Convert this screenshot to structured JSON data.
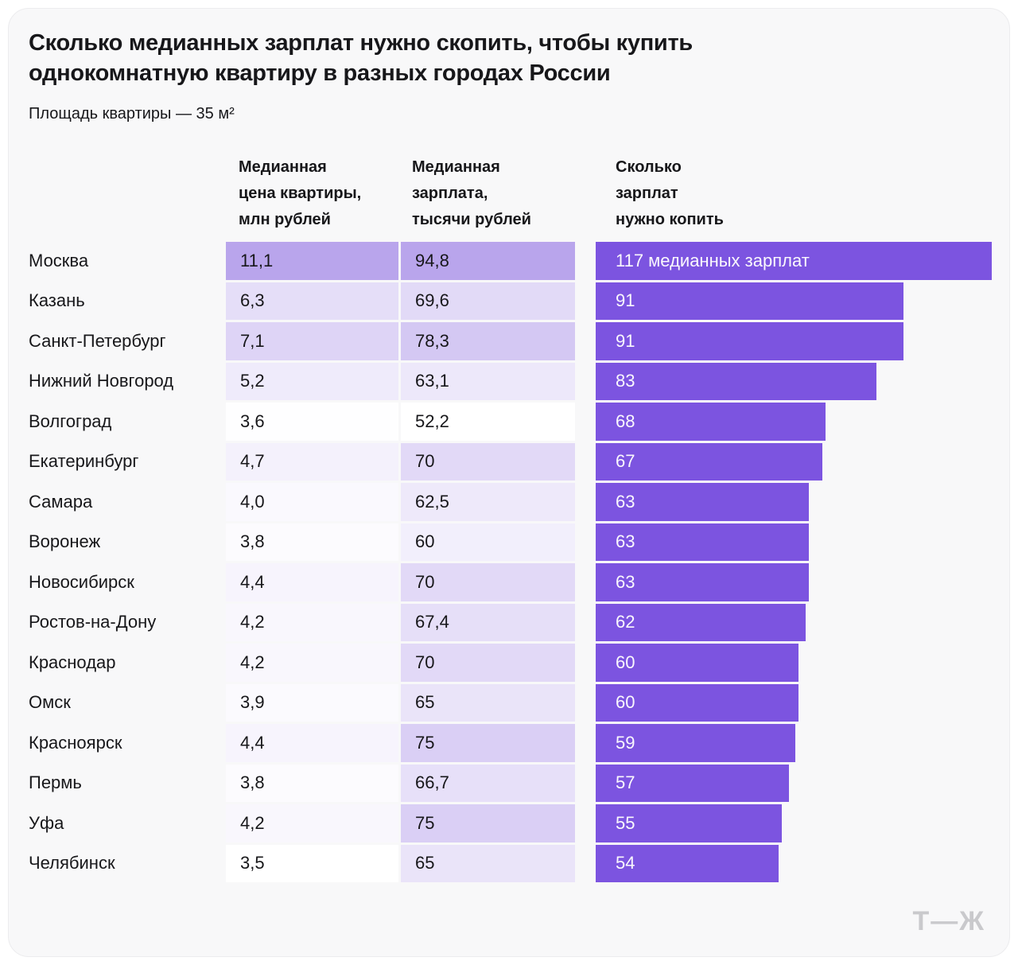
{
  "card": {
    "title_lines": [
      "Сколько медианных зарплат нужно скопить, чтобы купить",
      "однокомнатную квартиру в разных городах России"
    ],
    "subtitle": "Площадь квартиры — 35 м²",
    "logo_text": "Т—Ж"
  },
  "columns": {
    "price_header_lines": [
      "Медианная",
      "цена квартиры,",
      "млн рублей"
    ],
    "salary_header_lines": [
      "Медианная",
      "зарплата,",
      "тысячи рублей"
    ],
    "bars_header_lines": [
      "Сколько",
      "зарплат",
      "нужно копить"
    ]
  },
  "colors": {
    "bar_fill": "#7C54E0",
    "bar_label": "#FAF8FD",
    "heat_min_color": "#FFFFFF",
    "heat_max_color": "#B9A5EC",
    "card_bg": "#F8F8F9",
    "text": "#17171A",
    "logo": "#C9C9CC"
  },
  "chart_data": {
    "type": "bar",
    "orientation": "horizontal",
    "title": "Сколько медианных зарплат нужно скопить, чтобы купить однокомнатную квартиру в разных городах России",
    "subtitle": "Площадь квартиры — 35 м²",
    "categories": [
      "Москва",
      "Казань",
      "Санкт-Петербург",
      "Нижний Новгород",
      "Волгоград",
      "Екатеринбург",
      "Самара",
      "Воронеж",
      "Новосибирск",
      "Ростов-на-Дону",
      "Краснодар",
      "Омск",
      "Красноярск",
      "Пермь",
      "Уфа",
      "Челябинск"
    ],
    "series": [
      {
        "name": "Медианная цена квартиры, млн рублей",
        "values": [
          11.1,
          6.3,
          7.1,
          5.2,
          3.6,
          4.7,
          4.0,
          3.8,
          4.4,
          4.2,
          4.2,
          3.9,
          4.4,
          3.8,
          4.2,
          3.5
        ],
        "display": [
          "11,1",
          "6,3",
          "7,1",
          "5,2",
          "3,6",
          "4,7",
          "4,0",
          "3,8",
          "4,4",
          "4,2",
          "4,2",
          "3,9",
          "4,4",
          "3,8",
          "4,2",
          "3,5"
        ]
      },
      {
        "name": "Медианная зарплата, тысячи рублей",
        "values": [
          94.8,
          69.6,
          78.3,
          63.1,
          52.2,
          70,
          62.5,
          60,
          70,
          67.4,
          70,
          65,
          75,
          66.7,
          75,
          65
        ],
        "display": [
          "94,8",
          "69,6",
          "78,3",
          "63,1",
          "52,2",
          "70",
          "62,5",
          "60",
          "70",
          "67,4",
          "70",
          "65",
          "75",
          "66,7",
          "75",
          "65"
        ]
      },
      {
        "name": "Сколько зарплат нужно копить",
        "values": [
          117,
          91,
          91,
          83,
          68,
          67,
          63,
          63,
          63,
          62,
          60,
          60,
          59,
          57,
          55,
          54
        ],
        "display": [
          "117 медианных зарплат",
          "91",
          "91",
          "83",
          "68",
          "67",
          "63",
          "63",
          "63",
          "62",
          "60",
          "60",
          "59",
          "57",
          "55",
          "54"
        ]
      }
    ],
    "xlim": [
      0,
      117
    ],
    "heat_scale": {
      "price_min": 3.5,
      "price_max": 11.1,
      "salary_min": 52.2,
      "salary_max": 94.8,
      "min_color": "#FFFFFF",
      "max_color": "#B9A5EC"
    },
    "grid": false,
    "legend": "none"
  }
}
